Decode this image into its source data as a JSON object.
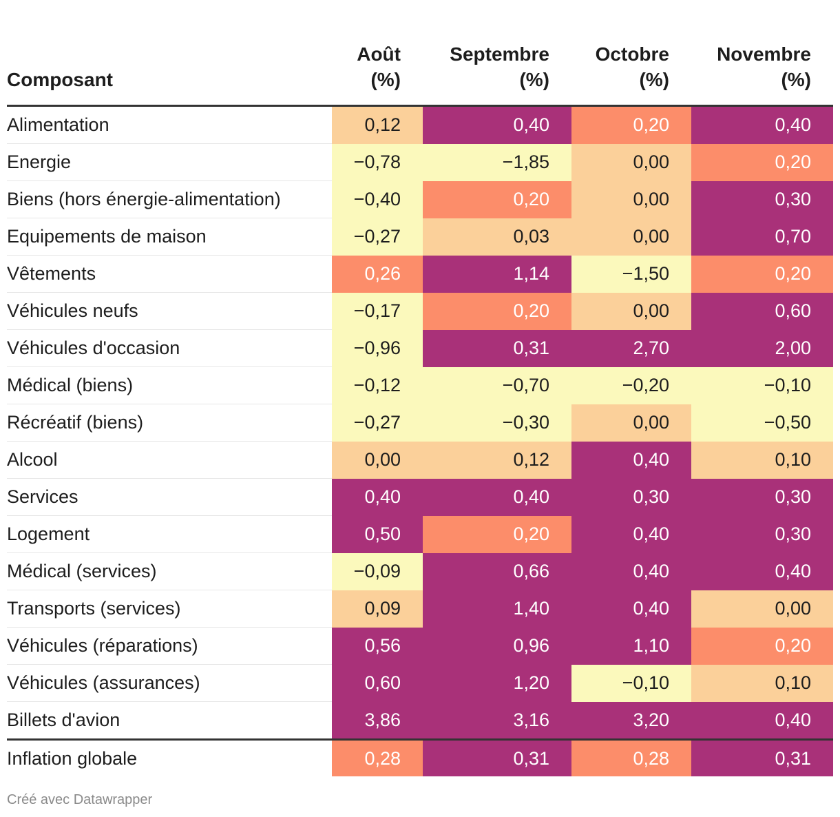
{
  "chart_data": {
    "type": "table",
    "title": "",
    "columns": [
      "Composant",
      "Août (%)",
      "Septembre (%)",
      "Octobre (%)",
      "Novembre (%)"
    ],
    "headers": [
      {
        "line1": "",
        "line2": "Composant"
      },
      {
        "line1": "Août",
        "line2": "(%)"
      },
      {
        "line1": "Septembre",
        "line2": "(%)"
      },
      {
        "line1": "Octobre",
        "line2": "(%)"
      },
      {
        "line1": "Novembre",
        "line2": "(%)"
      }
    ],
    "rows": [
      {
        "label": "Alimentation",
        "values": [
          "0,12",
          "0,40",
          "0,20",
          "0,40"
        ]
      },
      {
        "label": "Energie",
        "values": [
          "−0,78",
          "−1,85",
          "0,00",
          "0,20"
        ]
      },
      {
        "label": "Biens (hors énergie-alimentation)",
        "values": [
          "−0,40",
          "0,20",
          "0,00",
          "0,30"
        ]
      },
      {
        "label": "Equipements de maison",
        "values": [
          "−0,27",
          "0,03",
          "0,00",
          "0,70"
        ]
      },
      {
        "label": "Vêtements",
        "values": [
          "0,26",
          "1,14",
          "−1,50",
          "0,20"
        ]
      },
      {
        "label": "Véhicules neufs",
        "values": [
          "−0,17",
          "0,20",
          "0,00",
          "0,60"
        ]
      },
      {
        "label": "Véhicules d'occasion",
        "values": [
          "−0,96",
          "0,31",
          "2,70",
          "2,00"
        ]
      },
      {
        "label": "Médical (biens)",
        "values": [
          "−0,12",
          "−0,70",
          "−0,20",
          "−0,10"
        ]
      },
      {
        "label": "Récréatif (biens)",
        "values": [
          "−0,27",
          "−0,30",
          "0,00",
          "−0,50"
        ]
      },
      {
        "label": "Alcool",
        "values": [
          "0,00",
          "0,12",
          "0,40",
          "0,10"
        ]
      },
      {
        "label": "Services",
        "values": [
          "0,40",
          "0,40",
          "0,30",
          "0,30"
        ]
      },
      {
        "label": "Logement",
        "values": [
          "0,50",
          "0,20",
          "0,40",
          "0,30"
        ]
      },
      {
        "label": "Médical (services)",
        "values": [
          "−0,09",
          "0,66",
          "0,40",
          "0,40"
        ]
      },
      {
        "label": "Transports (services)",
        "values": [
          "0,09",
          "1,40",
          "0,40",
          "0,00"
        ]
      },
      {
        "label": "Véhicules (réparations)",
        "values": [
          "0,56",
          "0,96",
          "1,10",
          "0,20"
        ]
      },
      {
        "label": "Véhicules (assurances)",
        "values": [
          "0,60",
          "1,20",
          "−0,10",
          "0,10"
        ]
      },
      {
        "label": "Billets d'avion",
        "values": [
          "3,86",
          "3,16",
          "3,20",
          "0,40"
        ]
      }
    ],
    "total": {
      "label": "Inflation globale",
      "values": [
        "0,28",
        "0,31",
        "0,28",
        "0,31"
      ]
    },
    "color_scale": {
      "negative": "#fbf9bc",
      "low": "#fbd09a",
      "mid": "#fc8d6a",
      "high": "#a93179",
      "dark_text": "#1d1d1d",
      "light_text": "#ffffff"
    }
  },
  "footer": "Créé avec Datawrapper"
}
